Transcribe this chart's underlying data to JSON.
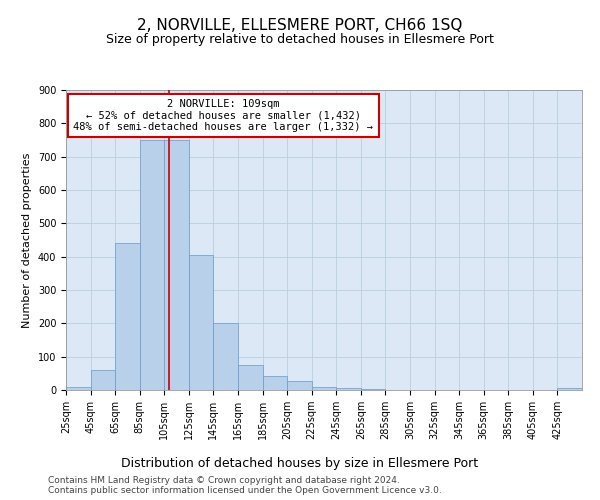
{
  "title": "2, NORVILLE, ELLESMERE PORT, CH66 1SQ",
  "subtitle": "Size of property relative to detached houses in Ellesmere Port",
  "xlabel": "Distribution of detached houses by size in Ellesmere Port",
  "ylabel": "Number of detached properties",
  "bar_color": "#b8d0ea",
  "bar_edge_color": "#6699cc",
  "background_color": "#ffffff",
  "plot_bg_color": "#dce8f5",
  "grid_color": "#b8cfe0",
  "bins": [
    25,
    45,
    65,
    85,
    105,
    125,
    145,
    165,
    185,
    205,
    225,
    245,
    265,
    285,
    305,
    325,
    345,
    365,
    385,
    405,
    425,
    445
  ],
  "values": [
    10,
    60,
    440,
    750,
    750,
    405,
    200,
    75,
    43,
    27,
    10,
    5,
    2,
    0,
    0,
    0,
    0,
    0,
    0,
    0,
    5
  ],
  "property_size": 109,
  "annotation_line1": "2 NORVILLE: 109sqm",
  "annotation_line2": "← 52% of detached houses are smaller (1,432)",
  "annotation_line3": "48% of semi-detached houses are larger (1,332) →",
  "annotation_box_color": "#ffffff",
  "annotation_box_edge": "#cc0000",
  "vline_color": "#cc0000",
  "ylim": [
    0,
    900
  ],
  "yticks": [
    0,
    100,
    200,
    300,
    400,
    500,
    600,
    700,
    800,
    900
  ],
  "xtick_labels": [
    "25sqm",
    "45sqm",
    "65sqm",
    "85sqm",
    "105sqm",
    "125sqm",
    "145sqm",
    "165sqm",
    "185sqm",
    "205sqm",
    "225sqm",
    "245sqm",
    "265sqm",
    "285sqm",
    "305sqm",
    "325sqm",
    "345sqm",
    "365sqm",
    "385sqm",
    "405sqm",
    "425sqm"
  ],
  "footer": "Contains HM Land Registry data © Crown copyright and database right 2024.\nContains public sector information licensed under the Open Government Licence v3.0.",
  "title_fontsize": 11,
  "subtitle_fontsize": 9,
  "xlabel_fontsize": 9,
  "ylabel_fontsize": 8,
  "tick_fontsize": 7,
  "annotation_fontsize": 7.5,
  "footer_fontsize": 6.5
}
